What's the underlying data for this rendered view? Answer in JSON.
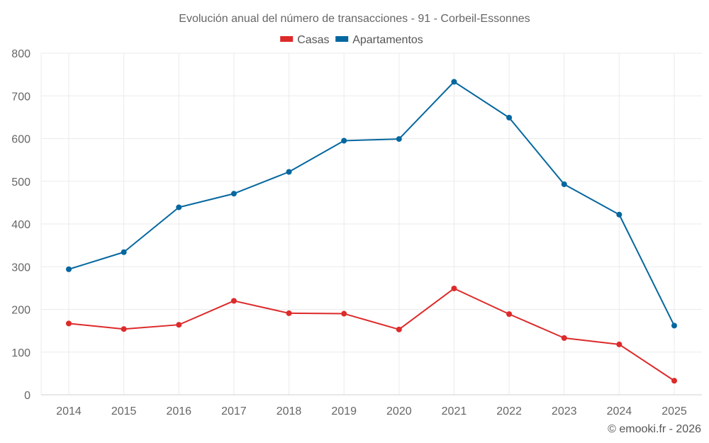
{
  "chart_data": {
    "type": "line",
    "title": "Evolución anual del número de transacciones - 91 - Corbeil-Essonnes",
    "xlabel": "",
    "ylabel": "",
    "categories": [
      "2014",
      "2015",
      "2016",
      "2017",
      "2018",
      "2019",
      "2020",
      "2021",
      "2022",
      "2023",
      "2024",
      "2025"
    ],
    "series": [
      {
        "name": "Casas",
        "color": "#dd2a2a",
        "values": [
          167,
          154,
          164,
          220,
          191,
          190,
          153,
          249,
          189,
          133,
          118,
          33
        ]
      },
      {
        "name": "Apartamentos",
        "color": "#05679f",
        "values": [
          294,
          334,
          439,
          471,
          522,
          595,
          599,
          733,
          649,
          493,
          422,
          162
        ]
      }
    ],
    "ylim": [
      0,
      800
    ],
    "yticks": [
      0,
      100,
      200,
      300,
      400,
      500,
      600,
      700,
      800
    ],
    "grid": true,
    "legend_position": "top-center",
    "credit": "© emooki.fr - 2026"
  }
}
